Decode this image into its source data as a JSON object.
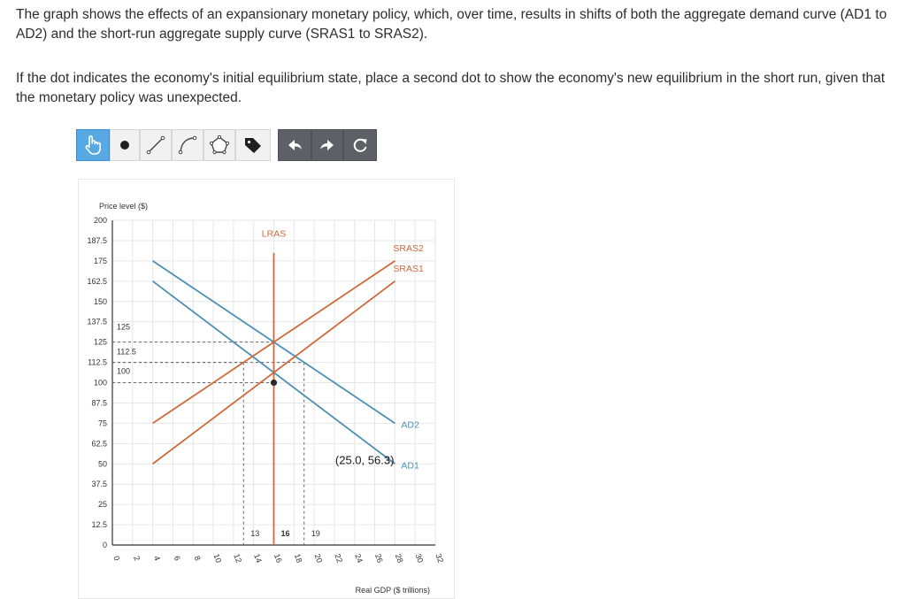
{
  "question": {
    "paragraph1": "The graph shows the effects of an expansionary monetary policy, which, over time, results in shifts of both the aggregate demand curve (AD1 to AD2) and the short-run aggregate supply curve (SRAS1 to SRAS2).",
    "paragraph2": "If the dot indicates the economy's initial equilibrium state, place a second dot to show the economy's new equilibrium in the short run, given that the monetary policy was unexpected."
  },
  "toolbar": {
    "tools": [
      {
        "name": "pointer-tool",
        "icon": "hand-pointer-icon",
        "selected": true
      },
      {
        "name": "point-tool",
        "icon": "dot-icon"
      },
      {
        "name": "line-tool",
        "icon": "line-icon"
      },
      {
        "name": "curve-tool",
        "icon": "curve-icon"
      },
      {
        "name": "polygon-tool",
        "icon": "pentagon-icon"
      },
      {
        "name": "label-tool",
        "icon": "tag-icon"
      },
      {
        "name": "undo-button",
        "icon": "undo-arrow-icon"
      },
      {
        "name": "redo-button",
        "icon": "redo-arrow-icon"
      },
      {
        "name": "reset-button",
        "icon": "reset-icon"
      }
    ]
  },
  "colors": {
    "demand": "#4b8fb8",
    "supply": "#cc6a3a",
    "grid": "#e6e6e6",
    "axis": "#333333"
  },
  "chart_data": {
    "type": "line",
    "ylabel": "Price level ($)",
    "xlabel": "Real GDP ($ trillions)",
    "xlim": [
      0,
      32
    ],
    "ylim": [
      0,
      200
    ],
    "x_ticks": [
      0,
      2,
      4,
      6,
      8,
      10,
      12,
      14,
      16,
      18,
      20,
      22,
      24,
      26,
      28,
      30,
      32
    ],
    "y_tick_labels": [
      "0",
      "12.5",
      "25",
      "37.5",
      "50",
      "62.5",
      "75",
      "87.5",
      "100",
      "112.5",
      "125",
      "137.5",
      "150",
      "162.5",
      "175",
      "187.5",
      "200"
    ],
    "grid": true,
    "series": [
      {
        "name": "AD1",
        "kind": "demand",
        "points": [
          [
            4,
            162.5
          ],
          [
            28,
            50
          ]
        ]
      },
      {
        "name": "AD2",
        "kind": "demand",
        "points": [
          [
            4,
            175
          ],
          [
            28,
            75
          ]
        ]
      },
      {
        "name": "SRAS1",
        "kind": "supply",
        "points": [
          [
            4,
            50
          ],
          [
            28,
            162.5
          ]
        ]
      },
      {
        "name": "SRAS2",
        "kind": "supply",
        "points": [
          [
            4,
            75
          ],
          [
            28,
            175
          ]
        ]
      },
      {
        "name": "LRAS",
        "kind": "supply",
        "points": [
          [
            16,
            0
          ],
          [
            16,
            180
          ]
        ]
      }
    ],
    "guides": [
      {
        "x": 16,
        "y": 100
      },
      {
        "x": 13,
        "y": 112.5
      },
      {
        "x": 16,
        "y": 125
      },
      {
        "x": 19,
        "y": 112.5
      }
    ],
    "guide_labels": {
      "x": [
        {
          "value": 13,
          "text": "13"
        },
        {
          "value": 16,
          "text": "16"
        },
        {
          "value": 19,
          "text": "19"
        }
      ],
      "y": [
        {
          "value": 125,
          "text": "125"
        },
        {
          "value": 112.5,
          "text": "112.5"
        },
        {
          "value": 100,
          "text": "100"
        }
      ]
    },
    "equilibrium_dot": {
      "x": 16,
      "y": 100
    },
    "coordinate_readout": "(25.0, 56.3)"
  }
}
